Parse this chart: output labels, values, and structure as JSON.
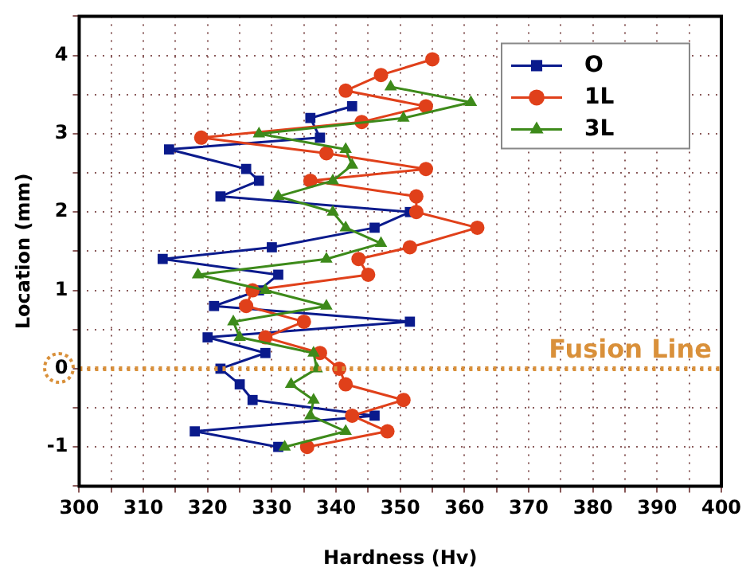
{
  "chart_data": {
    "type": "line",
    "xlabel": "Hardness (Hv)",
    "ylabel": "Location (mm)",
    "xlim": [
      300,
      400
    ],
    "xticks": [
      300,
      {
        "value": 305,
        "label": null
      },
      310,
      {
        "value": 315,
        "label": null
      },
      320,
      {
        "value": 325,
        "label": null
      },
      330,
      {
        "value": 335,
        "label": null
      },
      340,
      {
        "value": 345,
        "label": null
      },
      350,
      {
        "value": 355,
        "label": null
      },
      360,
      {
        "value": 365,
        "label": null
      },
      370,
      {
        "value": 375,
        "label": null
      },
      380,
      {
        "value": 385,
        "label": null
      },
      390,
      {
        "value": 395,
        "label": null
      },
      400
    ],
    "ylim": [
      -1.5,
      4.5
    ],
    "yticks": [
      {
        "value": -1.5,
        "label": null
      },
      -1,
      {
        "value": -0.5,
        "label": null
      },
      0,
      {
        "value": 0.5,
        "label": null
      },
      1,
      {
        "value": 1.5,
        "label": null
      },
      2,
      {
        "value": 2.5,
        "label": null
      },
      3,
      {
        "value": 3.5,
        "label": null
      },
      4,
      {
        "value": 4.5,
        "label": null
      }
    ],
    "grid": true,
    "legend": "top right",
    "line_style": "solid",
    "series": [
      {
        "name": "O",
        "color": "#0a1a8c",
        "marker": "square",
        "x": [
          342.5,
          336,
          337.5,
          314,
          326,
          328,
          322,
          351.5,
          346,
          330,
          313,
          331,
          328,
          321,
          351.5,
          320,
          329,
          322,
          325,
          327,
          346,
          318,
          331
        ],
        "values": [
          3.35,
          3.2,
          2.95,
          2.8,
          2.55,
          2.4,
          2.2,
          2,
          1.8,
          1.55,
          1.4,
          1.2,
          1,
          0.8,
          0.6,
          0.4,
          0.2,
          0,
          -0.2,
          -0.4,
          -0.6,
          -0.8,
          -1
        ]
      },
      {
        "name": "1L",
        "color": "#e0401a",
        "marker": "circle",
        "x": [
          355,
          347,
          341.5,
          354,
          344,
          319,
          338.5,
          354,
          336,
          352.5,
          352.5,
          362,
          351.5,
          343.5,
          345,
          327,
          326,
          335,
          329,
          337.5,
          340.5,
          341.5,
          350.5,
          342.5,
          348,
          335.5
        ],
        "values": [
          3.95,
          3.75,
          3.55,
          3.35,
          3.15,
          2.95,
          2.75,
          2.55,
          2.4,
          2.2,
          2,
          1.8,
          1.55,
          1.4,
          1.2,
          1,
          0.8,
          0.6,
          0.4,
          0.2,
          0,
          -0.2,
          -0.4,
          -0.6,
          -0.8,
          -1
        ]
      },
      {
        "name": "3L",
        "color": "#3d8a1a",
        "marker": "triangle",
        "x": [
          348.5,
          361,
          350.5,
          328,
          341.5,
          342.5,
          339.5,
          331,
          339.5,
          341.5,
          347,
          338.5,
          318.5,
          329,
          338.5,
          324,
          325,
          336.5,
          337,
          333,
          336.5,
          336,
          341.5,
          332
        ],
        "values": [
          3.6,
          3.4,
          3.2,
          3,
          2.8,
          2.6,
          2.4,
          2.2,
          2,
          1.8,
          1.6,
          1.4,
          1.2,
          1,
          0.8,
          0.6,
          0.4,
          0.2,
          0,
          -0.2,
          -0.4,
          -0.6,
          -0.8,
          -1
        ]
      }
    ],
    "ref_lines": [
      {
        "axis": "y",
        "value": 0,
        "label": "Fusion Line",
        "color": "#d9903a",
        "line_style": "dotted"
      }
    ]
  }
}
